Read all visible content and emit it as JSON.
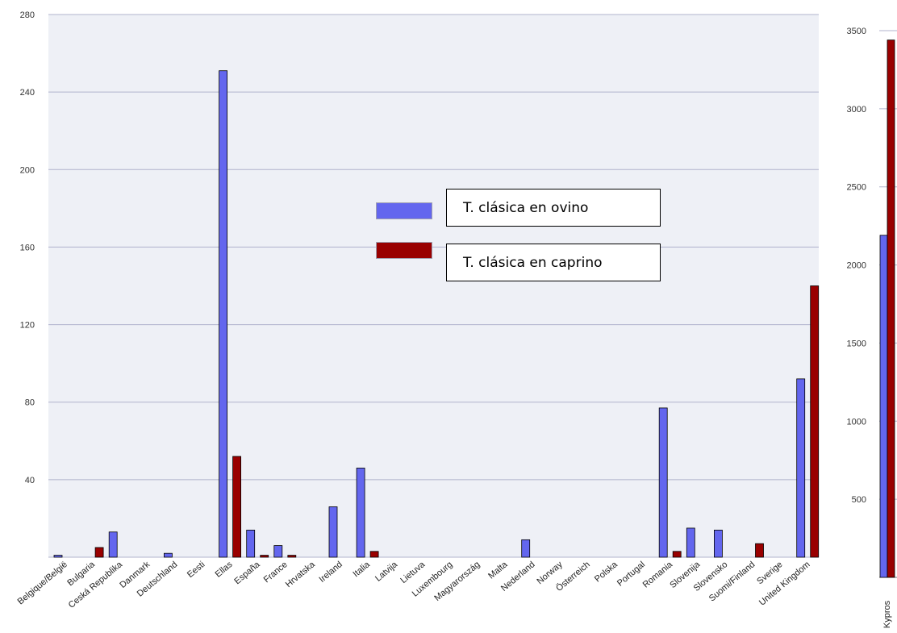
{
  "colors": {
    "ovino": "#6366ee",
    "caprino": "#990000",
    "grid": "#b0b3cc",
    "bg": "#eef0f6"
  },
  "chart_data": [
    {
      "type": "bar",
      "categories": [
        "Belgique/België",
        "Bulgaria",
        "Ceská Republika",
        "Danmark",
        "Deutschland",
        "Eesti",
        "Ellas",
        "España",
        "France",
        "Hrvatska",
        "Ireland",
        "Italia",
        "Latvija",
        "Lietuva",
        "Luxembourg",
        "Magyarország",
        "Malta",
        "Nederland",
        "Norway",
        "Österreich",
        "Polska",
        "Portugal",
        "Romania",
        "Slovenija",
        "Slovensko",
        "Suomi/Finland",
        "Sverige",
        "United Kingdom"
      ],
      "series": [
        {
          "name": "T. clásica en ovino",
          "values": [
            1,
            0,
            13,
            0,
            2,
            0,
            251,
            14,
            6,
            0,
            26,
            46,
            0,
            0,
            0,
            0,
            0,
            9,
            0,
            0,
            0,
            0,
            77,
            15,
            14,
            0,
            0,
            92
          ]
        },
        {
          "name": "T. clásica en caprino",
          "values": [
            0,
            5,
            0,
            0,
            0,
            0,
            52,
            1,
            1,
            0,
            0,
            3,
            0,
            0,
            0,
            0,
            0,
            0,
            0,
            0,
            0,
            0,
            3,
            0,
            0,
            7,
            0,
            140
          ]
        }
      ],
      "ylim": [
        0,
        280
      ],
      "yticks": [
        "40",
        "80",
        "120",
        "160",
        "200",
        "240",
        "280"
      ],
      "grid": true,
      "legend": "center"
    },
    {
      "type": "bar",
      "categories": [
        "Kypros"
      ],
      "series": [
        {
          "name": "T. clásica en ovino",
          "values": [
            2190
          ]
        },
        {
          "name": "T. clásica en caprino",
          "values": [
            3440
          ]
        }
      ],
      "ylim": [
        0,
        3500
      ],
      "yticks": [
        "500",
        "1000",
        "1500",
        "2000",
        "2500",
        "3000",
        "3500"
      ]
    }
  ]
}
